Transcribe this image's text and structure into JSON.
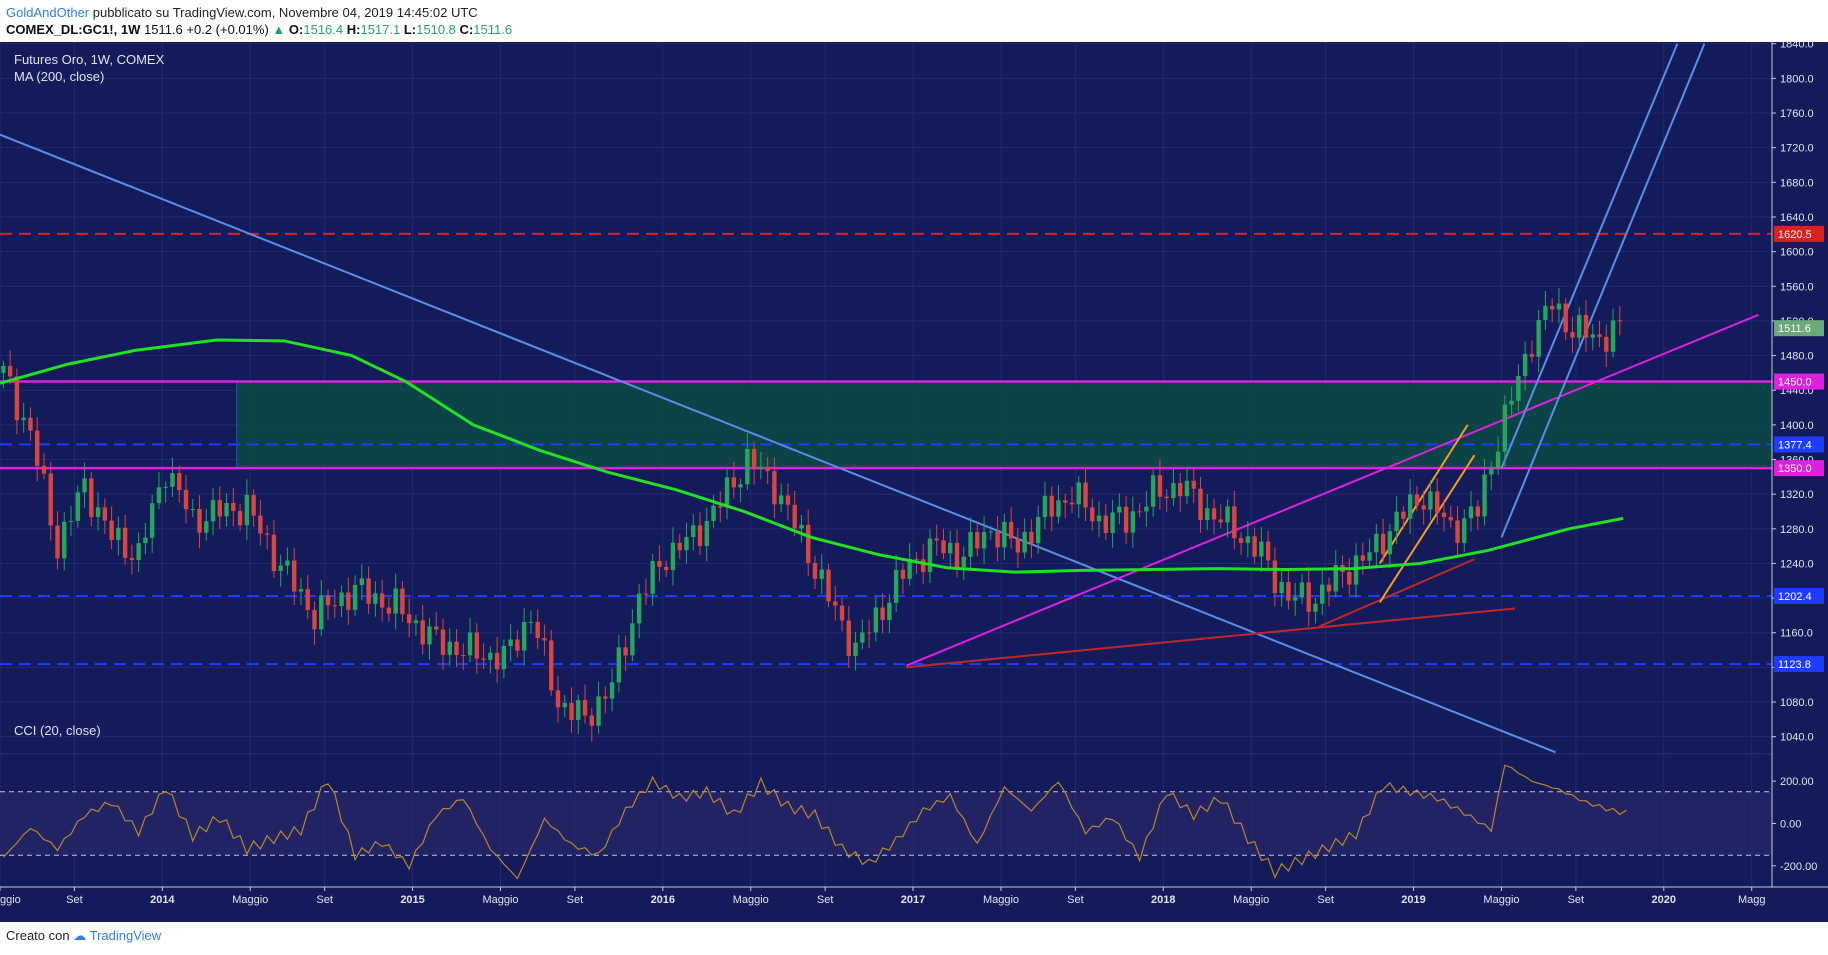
{
  "header": {
    "author": "GoldAndOther",
    "published": "pubblicato su TradingView.com, Novembre 04, 2019 14:45:02 UTC",
    "symbol": "COMEX_DL:GC1!, 1W",
    "last": "1511.6",
    "change": "+0.2 (+0.01%)",
    "open_label": "O:",
    "open": "1516.4",
    "high_label": "H:",
    "high": "1517.1",
    "low_label": "L:",
    "low": "1510.8",
    "close_label": "C:",
    "close": "1511.6"
  },
  "footer": {
    "created_with": "Creato con",
    "brand": "TradingView"
  },
  "colors": {
    "background": "#141b5a",
    "price_panel": "#131a58",
    "ma_line": "#22e022",
    "magenta": "#e020e0",
    "red_dash": "#e02020",
    "blue_dash": "#1e3cff",
    "trend_blue": "#5a8ee8",
    "orange": "#f0a020",
    "zone_fill": "#0b4a44",
    "cci_line": "#b8862a"
  },
  "chart_data": {
    "type": "candlestick",
    "title": "Futures Oro, 1W, COMEX",
    "indicator": "MA (200, close)",
    "x_ticks": [
      "ggio",
      "Set",
      "2014",
      "Maggio",
      "Set",
      "2015",
      "Maggio",
      "Set",
      "2016",
      "Maggio",
      "Set",
      "2017",
      "Maggio",
      "Set",
      "2018",
      "Maggio",
      "Set",
      "2019",
      "Maggio",
      "Set",
      "2020",
      "Magg"
    ],
    "y_ticks": [
      "1040.0",
      "1080.0",
      "1120.0",
      "1160.0",
      "1200.0",
      "1240.0",
      "1280.0",
      "1320.0",
      "1360.0",
      "1400.0",
      "1440.0",
      "1480.0",
      "1520.0",
      "1560.0",
      "1600.0",
      "1640.0",
      "1680.0",
      "1720.0",
      "1760.0",
      "1800.0",
      "1840.0"
    ],
    "ylim": [
      1020,
      1842
    ],
    "price_path": [
      [
        0,
        1460
      ],
      [
        4,
        1390
      ],
      [
        8,
        1260
      ],
      [
        12,
        1330
      ],
      [
        16,
        1270
      ],
      [
        20,
        1250
      ],
      [
        24,
        1350
      ],
      [
        28,
        1290
      ],
      [
        32,
        1300
      ],
      [
        36,
        1305
      ],
      [
        40,
        1250
      ],
      [
        46,
        1180
      ],
      [
        52,
        1210
      ],
      [
        58,
        1190
      ],
      [
        64,
        1150
      ],
      [
        68,
        1140
      ],
      [
        74,
        1130
      ],
      [
        78,
        1180
      ],
      [
        82,
        1080
      ],
      [
        86,
        1060
      ],
      [
        90,
        1100
      ],
      [
        94,
        1200
      ],
      [
        98,
        1250
      ],
      [
        102,
        1270
      ],
      [
        106,
        1310
      ],
      [
        110,
        1360
      ],
      [
        114,
        1330
      ],
      [
        118,
        1270
      ],
      [
        122,
        1200
      ],
      [
        126,
        1140
      ],
      [
        130,
        1190
      ],
      [
        134,
        1240
      ],
      [
        138,
        1260
      ],
      [
        142,
        1250
      ],
      [
        146,
        1280
      ],
      [
        150,
        1260
      ],
      [
        154,
        1300
      ],
      [
        158,
        1320
      ],
      [
        162,
        1290
      ],
      [
        166,
        1290
      ],
      [
        170,
        1320
      ],
      [
        174,
        1330
      ],
      [
        178,
        1300
      ],
      [
        182,
        1280
      ],
      [
        186,
        1250
      ],
      [
        190,
        1200
      ],
      [
        194,
        1200
      ],
      [
        198,
        1230
      ],
      [
        202,
        1250
      ],
      [
        206,
        1290
      ],
      [
        210,
        1320
      ],
      [
        214,
        1280
      ],
      [
        218,
        1300
      ],
      [
        220,
        1360
      ],
      [
        223,
        1430
      ],
      [
        226,
        1500
      ],
      [
        229,
        1540
      ],
      [
        232,
        1510
      ],
      [
        236,
        1500
      ],
      [
        239,
        1511.6
      ]
    ],
    "x_tick_pos": [
      0,
      11,
      24,
      37,
      48,
      61,
      74,
      85,
      98,
      111,
      122,
      135,
      148,
      159,
      172,
      185,
      196,
      209,
      222,
      233,
      246,
      259
    ],
    "ma200": [
      [
        0,
        1448
      ],
      [
        10,
        1470
      ],
      [
        20,
        1486
      ],
      [
        32,
        1498
      ],
      [
        42,
        1497
      ],
      [
        52,
        1480
      ],
      [
        60,
        1450
      ],
      [
        70,
        1400
      ],
      [
        80,
        1370
      ],
      [
        90,
        1345
      ],
      [
        100,
        1325
      ],
      [
        110,
        1300
      ],
      [
        120,
        1270
      ],
      [
        130,
        1250
      ],
      [
        140,
        1235
      ],
      [
        150,
        1230
      ],
      [
        160,
        1232
      ],
      [
        170,
        1233
      ],
      [
        180,
        1234
      ],
      [
        190,
        1233
      ],
      [
        200,
        1234
      ],
      [
        210,
        1240
      ],
      [
        220,
        1255
      ],
      [
        232,
        1280
      ],
      [
        240,
        1292
      ]
    ],
    "horizontal_levels": [
      {
        "value": 1620.5,
        "label": "1620.5",
        "style": "red-dash"
      },
      {
        "value": 1450.0,
        "label": "1450.0",
        "style": "magenta"
      },
      {
        "value": 1377.4,
        "label": "1377.4",
        "style": "blue-dash"
      },
      {
        "value": 1350.0,
        "label": "1350.0",
        "style": "magenta"
      },
      {
        "value": 1202.4,
        "label": "1202.4",
        "style": "blue-dash"
      },
      {
        "value": 1123.8,
        "label": "1123.8",
        "style": "blue-dash"
      }
    ],
    "last_price_label": "1511.6",
    "zone": {
      "x_start": 35,
      "x_end": 262,
      "y_low": 1350,
      "y_high": 1450
    },
    "trendlines": [
      {
        "color": "trend_blue",
        "from": [
          0,
          1735
        ],
        "to": [
          230,
          1022
        ]
      },
      {
        "color": "magenta",
        "from": [
          134,
          1122
        ],
        "to": [
          260,
          1527
        ]
      },
      {
        "color": "darkred",
        "from": [
          134,
          1120
        ],
        "to": [
          224,
          1188
        ]
      },
      {
        "color": "darkred",
        "from": [
          195,
          1167
        ],
        "to": [
          218,
          1245
        ]
      },
      {
        "color": "trend_blue",
        "from": [
          222,
          1270
        ],
        "to": [
          252,
          1840
        ]
      },
      {
        "color": "trend_blue",
        "from": [
          222,
          1350
        ],
        "to": [
          248,
          1840
        ]
      },
      {
        "color": "orange",
        "from": [
          204,
          1195
        ],
        "to": [
          218,
          1365
        ]
      },
      {
        "color": "orange",
        "from": [
          204,
          1240
        ],
        "to": [
          217,
          1400
        ]
      }
    ],
    "cci": {
      "label": "CCI (20, close)",
      "y_ticks": [
        "200.00",
        "0.00",
        "-200.00"
      ],
      "bands": [
        150,
        -150
      ],
      "ylim": [
        -300,
        300
      ],
      "values": [
        [
          0,
          -160
        ],
        [
          4,
          -20
        ],
        [
          8,
          -120
        ],
        [
          12,
          40
        ],
        [
          16,
          100
        ],
        [
          20,
          -40
        ],
        [
          24,
          170
        ],
        [
          28,
          -60
        ],
        [
          32,
          30
        ],
        [
          36,
          -120
        ],
        [
          40,
          -70
        ],
        [
          44,
          -30
        ],
        [
          48,
          210
        ],
        [
          52,
          -150
        ],
        [
          56,
          -90
        ],
        [
          60,
          -200
        ],
        [
          64,
          40
        ],
        [
          68,
          120
        ],
        [
          72,
          -120
        ],
        [
          76,
          -260
        ],
        [
          80,
          20
        ],
        [
          84,
          -100
        ],
        [
          88,
          -150
        ],
        [
          92,
          60
        ],
        [
          96,
          200
        ],
        [
          100,
          120
        ],
        [
          104,
          150
        ],
        [
          108,
          40
        ],
        [
          112,
          190
        ],
        [
          116,
          80
        ],
        [
          120,
          40
        ],
        [
          124,
          -120
        ],
        [
          128,
          -190
        ],
        [
          132,
          -80
        ],
        [
          136,
          60
        ],
        [
          140,
          130
        ],
        [
          144,
          -100
        ],
        [
          148,
          170
        ],
        [
          152,
          60
        ],
        [
          156,
          200
        ],
        [
          160,
          -40
        ],
        [
          164,
          30
        ],
        [
          168,
          -160
        ],
        [
          172,
          150
        ],
        [
          176,
          40
        ],
        [
          180,
          120
        ],
        [
          184,
          -70
        ],
        [
          188,
          -230
        ],
        [
          192,
          -170
        ],
        [
          196,
          -110
        ],
        [
          200,
          -50
        ],
        [
          204,
          180
        ],
        [
          208,
          150
        ],
        [
          212,
          120
        ],
        [
          216,
          50
        ],
        [
          220,
          -30
        ],
        [
          222,
          280
        ],
        [
          226,
          200
        ],
        [
          230,
          160
        ],
        [
          234,
          100
        ],
        [
          238,
          60
        ],
        [
          240,
          50
        ]
      ]
    }
  }
}
